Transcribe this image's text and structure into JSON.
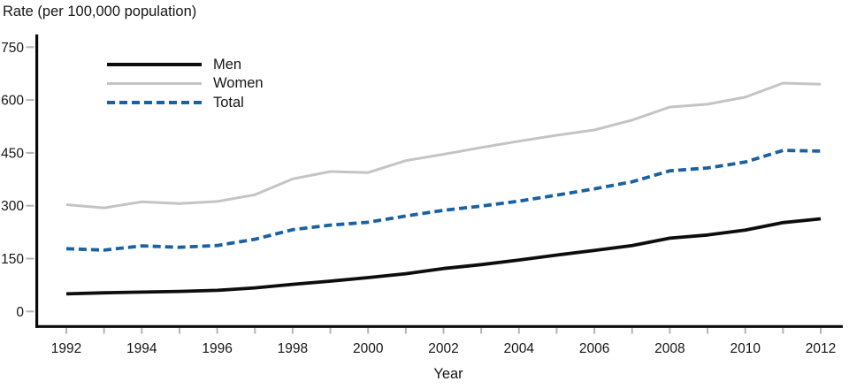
{
  "title": "Rate (per 100,000 population)",
  "x_axis_title": "Year",
  "chart_data": {
    "type": "line",
    "title": "Rate (per 100,000 population)",
    "xlabel": "Year",
    "ylabel": "",
    "x": [
      1992,
      1993,
      1994,
      1995,
      1996,
      1997,
      1998,
      1999,
      2000,
      2001,
      2002,
      2003,
      2004,
      2005,
      2006,
      2007,
      2008,
      2009,
      2010,
      2011,
      2012
    ],
    "xtick_labels": [
      1992,
      1994,
      1996,
      1998,
      2000,
      2002,
      2004,
      2006,
      2008,
      2010,
      2012
    ],
    "yticks": [
      0,
      150,
      300,
      450,
      600,
      750
    ],
    "ylim": [
      0,
      750
    ],
    "xlim": [
      1992,
      2012
    ],
    "grid": false,
    "legend_position": "upper-left-inside",
    "series": [
      {
        "name": "Men",
        "color": "#0d0d0d",
        "line_style": "solid",
        "values": [
          50,
          53,
          55,
          57,
          60,
          67,
          77,
          86,
          96,
          107,
          122,
          133,
          146,
          160,
          173,
          187,
          208,
          217,
          231,
          252,
          263
        ]
      },
      {
        "name": "Women",
        "color": "#c4c4c6",
        "line_style": "solid",
        "values": [
          303,
          294,
          311,
          306,
          312,
          331,
          376,
          397,
          394,
          428,
          446,
          465,
          483,
          500,
          515,
          543,
          580,
          588,
          608,
          648,
          645
        ]
      },
      {
        "name": "Total",
        "color": "#1961a3",
        "line_style": "dashed",
        "values": [
          178,
          174,
          186,
          182,
          187,
          205,
          232,
          245,
          253,
          271,
          287,
          299,
          313,
          330,
          348,
          368,
          399,
          407,
          424,
          457,
          455
        ]
      }
    ]
  },
  "style": {
    "axis_color": "#0a0a0a",
    "tick_color": "#b4b4b6",
    "text_color": "#161616",
    "background": "#ffffff"
  }
}
